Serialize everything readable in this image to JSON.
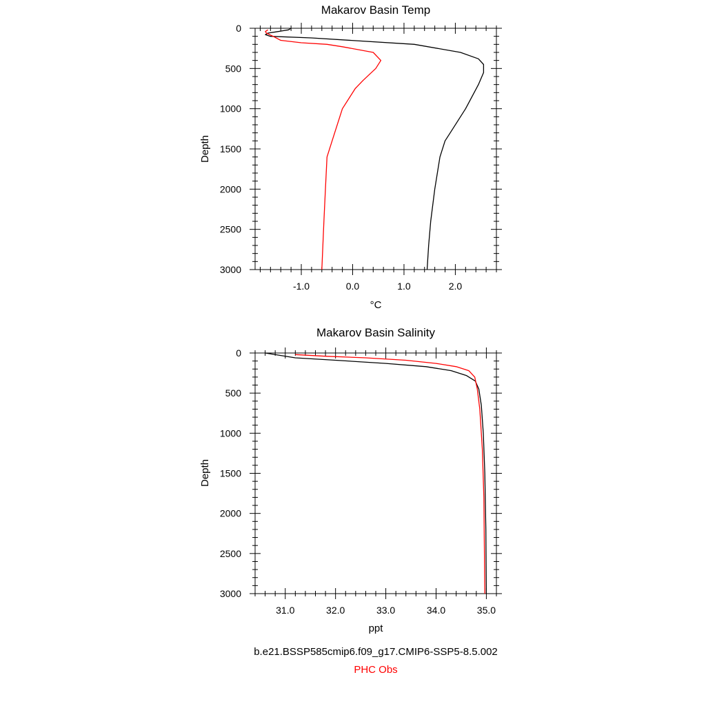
{
  "chart_data": [
    {
      "type": "line",
      "title": "Makarov Basin Temp",
      "xlabel": "°C",
      "ylabel": "Depth",
      "xlim": [
        -1.9,
        2.8
      ],
      "ylim": [
        0,
        3000
      ],
      "y_inverted": true,
      "xticks": [
        -1.0,
        0.0,
        1.0,
        2.0
      ],
      "xtick_labels": [
        "-1.0",
        "0.0",
        "1.0",
        "2.0"
      ],
      "yticks": [
        0,
        500,
        1000,
        1500,
        2000,
        2500,
        3000
      ],
      "ytick_labels": [
        "0",
        "500",
        "1000",
        "1500",
        "2000",
        "2500",
        "3000"
      ],
      "series": [
        {
          "name": "b.e21.BSSP585cmip6.f09_g17.CMIP6-SSP5-8.5.002",
          "color": "#000000",
          "x": [
            -1.2,
            -1.25,
            -1.35,
            -1.5,
            -1.65,
            -1.7,
            -1.6,
            -0.8,
            1.2,
            2.1,
            2.45,
            2.55,
            2.55,
            2.45,
            2.2,
            1.9,
            1.8,
            1.7,
            1.6,
            1.52,
            1.48,
            1.45
          ],
          "y": [
            0,
            20,
            30,
            45,
            60,
            80,
            100,
            120,
            200,
            300,
            380,
            450,
            550,
            700,
            1000,
            1300,
            1400,
            1600,
            2000,
            2400,
            2700,
            3000
          ]
        },
        {
          "name": "PHC Obs",
          "color": "#ff0000",
          "x": [
            -1.65,
            -1.7,
            -1.68,
            -1.55,
            -1.4,
            -1.0,
            -0.5,
            -0.2,
            0.4,
            0.55,
            0.45,
            0.2,
            0.05,
            -0.2,
            -0.4,
            -0.5,
            -0.53,
            -0.56,
            -0.58,
            -0.6
          ],
          "y": [
            20,
            40,
            60,
            100,
            150,
            180,
            200,
            230,
            300,
            400,
            500,
            650,
            750,
            1000,
            1400,
            1600,
            2000,
            2400,
            2700,
            3000
          ]
        }
      ]
    },
    {
      "type": "line",
      "title": "Makarov Basin Salinity",
      "xlabel": "ppt",
      "ylabel": "Depth",
      "xlim": [
        30.4,
        35.2
      ],
      "ylim": [
        0,
        3000
      ],
      "y_inverted": true,
      "xticks": [
        31.0,
        32.0,
        33.0,
        34.0,
        35.0
      ],
      "xtick_labels": [
        "31.0",
        "32.0",
        "33.0",
        "34.0",
        "35.0"
      ],
      "yticks": [
        0,
        500,
        1000,
        1500,
        2000,
        2500,
        3000
      ],
      "ytick_labels": [
        "0",
        "500",
        "1000",
        "1500",
        "2000",
        "2500",
        "3000"
      ],
      "series": [
        {
          "name": "b.e21.BSSP585cmip6.f09_g17.CMIP6-SSP5-8.5.002",
          "color": "#000000",
          "x": [
            30.6,
            30.9,
            31.2,
            32.0,
            33.0,
            33.8,
            34.3,
            34.6,
            34.78,
            34.85,
            34.9,
            34.94,
            34.97,
            34.99,
            35.0
          ],
          "y": [
            0,
            30,
            60,
            90,
            130,
            170,
            220,
            280,
            350,
            450,
            650,
            1000,
            1500,
            2200,
            3000
          ]
        },
        {
          "name": "PHC Obs",
          "color": "#ff0000",
          "x": [
            31.2,
            31.8,
            32.6,
            33.4,
            34.0,
            34.4,
            34.65,
            34.77,
            34.82,
            34.87,
            34.92,
            34.95,
            34.96,
            34.97
          ],
          "y": [
            20,
            40,
            60,
            90,
            130,
            170,
            220,
            300,
            450,
            700,
            1200,
            1800,
            2400,
            3000
          ]
        }
      ]
    }
  ],
  "legend": {
    "model_label": "b.e21.BSSP585cmip6.f09_g17.CMIP6-SSP5-8.5.002",
    "model_color": "#000000",
    "obs_label": "PHC Obs",
    "obs_color": "#ff0000"
  }
}
